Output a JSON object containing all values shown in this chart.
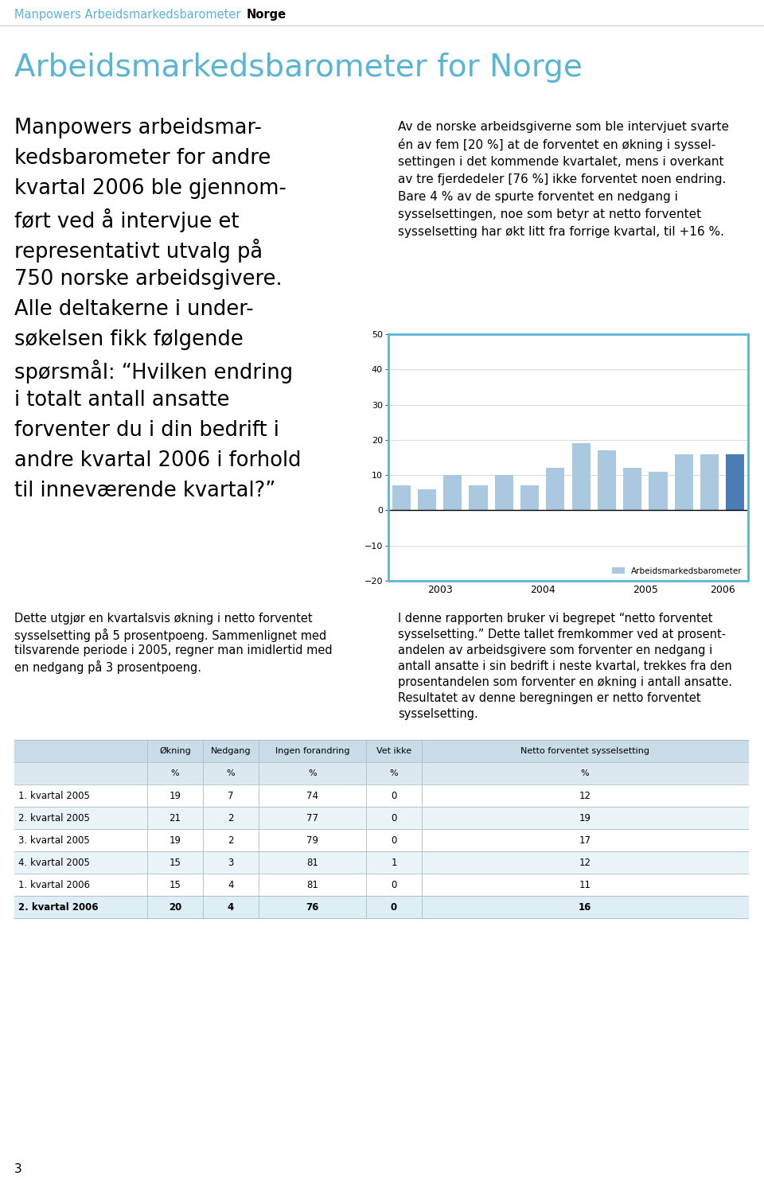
{
  "header_title1": "Manpowers Arbeidsmarkedsbarometer",
  "header_title2": "Norge",
  "main_title": "Arbeidsmarkedsbarometer for Norge",
  "left_text_lines": [
    "Manpowers arbeidsmar-",
    "kedsbarometer for andre",
    "kvartal 2006 ble gjennom-",
    "ført ved å intervjue et",
    "representativt utvalg på",
    "750 norske arbeidsgivere.",
    "Alle deltakerne i under-",
    "søkelsen fikk følgende",
    "spørsmål: “Hvilken endring",
    "i totalt antall ansatte",
    "forventer du i din bedrift i",
    "andre kvartal 2006 i forhold",
    "til inneværende kvartal?”"
  ],
  "right_text_lines": [
    "Av de norske arbeidsgiverne som ble intervjuet svarte",
    "én av fem [20 %] at de forventet en økning i syssel-",
    "settingen i det kommende kvartalet, mens i overkant",
    "av tre fjerdedeler [76 %] ikke forventet noen endring.",
    "Bare 4 % av de spurte forventet en nedgang i",
    "sysselsettingen, noe som betyr at netto forventet",
    "sysselsetting har økt litt fra forrige kvartal, til +16 %."
  ],
  "bottom_left_lines": [
    "Dette utgjør en kvartalsvis økning i netto forventet",
    "sysselsetting på 5 prosentpoeng. Sammenlignet med",
    "tilsvarende periode i 2005, regner man imidlertid med",
    "en nedgang på 3 prosentpoeng."
  ],
  "bottom_right_lines": [
    "I denne rapporten bruker vi begrepet “netto forventet",
    "sysselsetting.” Dette tallet fremkommer ved at prosent-",
    "andelen av arbeidsgivere som forventer en nedgang i",
    "antall ansatte i sin bedrift i neste kvartal, trekkes fra den",
    "prosentandelen som forventer en økning i antall ansatte.",
    "Resultatet av denne beregningen er netto forventet",
    "sysselsetting."
  ],
  "bar_values": [
    7,
    6,
    10,
    7,
    10,
    7,
    12,
    19,
    17,
    12,
    11,
    16,
    16,
    16
  ],
  "bar_colors_light": "#aac8e0",
  "bar_color_dark": "#4a7db5",
  "x_tick_labels": [
    "2003",
    "2004",
    "2005",
    "2006"
  ],
  "ylim": [
    -20,
    50
  ],
  "yticks": [
    -20,
    -10,
    0,
    10,
    20,
    30,
    40,
    50
  ],
  "legend_label": "Arbeidsmarkedsbarometer",
  "legend_color": "#aac8e0",
  "chart_border_color": "#5ab4d4",
  "table_headers": [
    "Økning",
    "Nedgang",
    "Ingen forandring",
    "Vet ikke",
    "Netto forventet sysselsetting"
  ],
  "table_rows": [
    [
      "1. kvartal 2005",
      19,
      7,
      74,
      0,
      12
    ],
    [
      "2. kvartal 2005",
      21,
      2,
      77,
      0,
      19
    ],
    [
      "3. kvartal 2005",
      19,
      2,
      79,
      0,
      17
    ],
    [
      "4. kvartal 2005",
      15,
      3,
      81,
      1,
      12
    ],
    [
      "1. kvartal 2006",
      15,
      4,
      81,
      0,
      11
    ],
    [
      "2. kvartal 2006",
      20,
      4,
      76,
      0,
      16
    ]
  ],
  "table_bold_row": 5,
  "header_color": "#5ab4d4",
  "page_number": "3",
  "background_color": "#ffffff"
}
